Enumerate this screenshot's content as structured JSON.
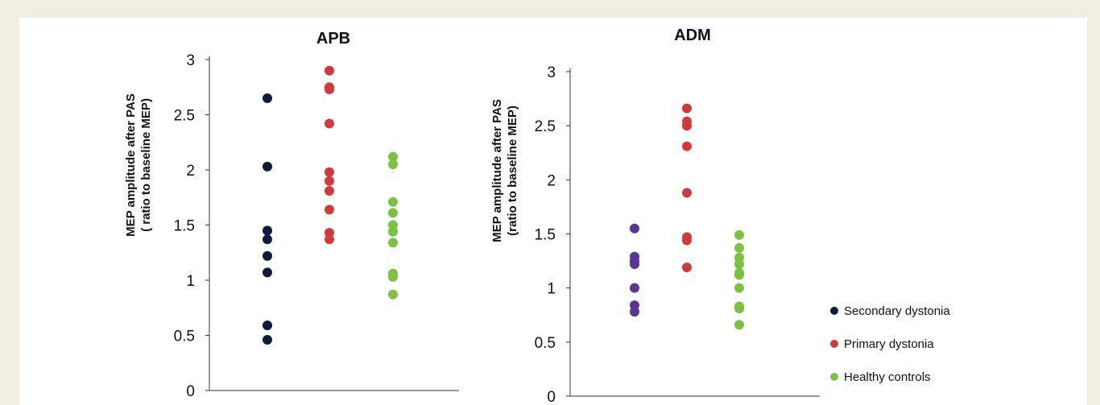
{
  "chart_data": [
    {
      "type": "scatter",
      "title": "APB",
      "ylabel": "MEP amplitude after PAS\n( ratio to baseline MEP)",
      "xlabel": "",
      "ylim": [
        0,
        3
      ],
      "yticks": [
        "0",
        "0.5",
        "1",
        "1.5",
        "2",
        "2.5",
        "3"
      ],
      "grid": false,
      "series": [
        {
          "name": "Secondary dystonia",
          "color": "#0f1b3d",
          "values": [
            2.65,
            2.03,
            1.45,
            1.37,
            1.22,
            1.07,
            0.59,
            0.46
          ]
        },
        {
          "name": "Primary dystonia",
          "color": "#d23a3a",
          "values": [
            2.9,
            2.75,
            2.73,
            2.42,
            1.98,
            1.9,
            1.81,
            1.64,
            1.43,
            1.37
          ]
        },
        {
          "name": "Healthy controls",
          "color": "#7cc242",
          "values": [
            2.12,
            2.05,
            1.71,
            1.61,
            1.5,
            1.44,
            1.34,
            1.06,
            1.03,
            0.87
          ]
        }
      ]
    },
    {
      "type": "scatter",
      "title": "ADM",
      "ylabel": "MEP amplitude after PAS\n(ratio to baseline MEP)",
      "xlabel": "",
      "ylim": [
        0,
        3
      ],
      "yticks": [
        "0",
        "0.5",
        "1",
        "1.5",
        "2",
        "2.5",
        "3"
      ],
      "grid": false,
      "series": [
        {
          "name": "Secondary dystonia",
          "color": "#5b3596",
          "values": [
            1.55,
            1.29,
            1.25,
            1.22,
            1.0,
            0.84,
            0.78
          ]
        },
        {
          "name": "Primary dystonia",
          "color": "#d23a3a",
          "values": [
            2.66,
            2.54,
            2.5,
            2.31,
            1.88,
            1.47,
            1.44,
            1.19
          ]
        },
        {
          "name": "Healthy controls",
          "color": "#7cc242",
          "values": [
            1.49,
            1.37,
            1.28,
            1.22,
            1.14,
            1.12,
            1.0,
            0.83,
            0.81,
            0.66
          ]
        }
      ]
    }
  ],
  "legend": {
    "placement": "right",
    "items": [
      {
        "label": "Secondary dystonia",
        "color": "#0f1b3d"
      },
      {
        "label": "Primary dystonia",
        "color": "#d23a3a"
      },
      {
        "label": "Healthy controls",
        "color": "#7cc242"
      }
    ]
  }
}
